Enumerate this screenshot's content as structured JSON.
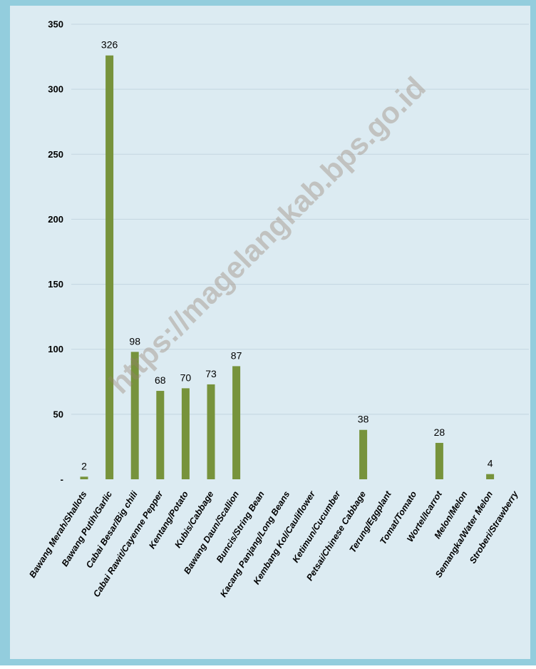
{
  "chart_data": {
    "type": "bar",
    "categories": [
      "Bawang Merah/Shallots",
      "Bawang Putih/Garlic",
      "Cabai Besar/Big chili",
      "Cabai Rawit/Cayenne Pepper",
      "Kentang/Potato",
      "Kubis/Cabbage",
      "Bawang Daun/Scallion",
      "Buncis/String Bean",
      "Kacang Panjang/Long Beans",
      "Kembang Kol/Cauliflower",
      "Ketimun/Cucumber",
      "Petsai/Chinese Cabbage",
      "Terung/Eggplant",
      "Tomat/Tomato",
      "Wortel/Icarrot",
      "Melon/Melon",
      "Semangka/Water Melon",
      "Stroberi/Strawberry"
    ],
    "values": [
      2,
      326,
      98,
      68,
      70,
      73,
      87,
      0,
      0,
      0,
      0,
      38,
      0,
      0,
      28,
      0,
      4,
      0
    ],
    "value_labels": [
      "2",
      "326",
      "98",
      "68",
      "70",
      "73",
      "87",
      "",
      "",
      "",
      "",
      "38",
      "",
      "",
      "28",
      "",
      "4",
      ""
    ],
    "y_ticks": [
      "-",
      "50",
      "100",
      "150",
      "200",
      "250",
      "300",
      "350"
    ],
    "ylim": [
      0,
      350
    ],
    "grid": true,
    "title": "",
    "xlabel": "",
    "ylabel": "",
    "colors": {
      "bar": "#77933c",
      "plot_bg": "#dcebf2",
      "outer_bg": "#93cddd",
      "grid": "#c3d6e0"
    }
  },
  "watermark": "https://magelangkab.bps.go.id"
}
